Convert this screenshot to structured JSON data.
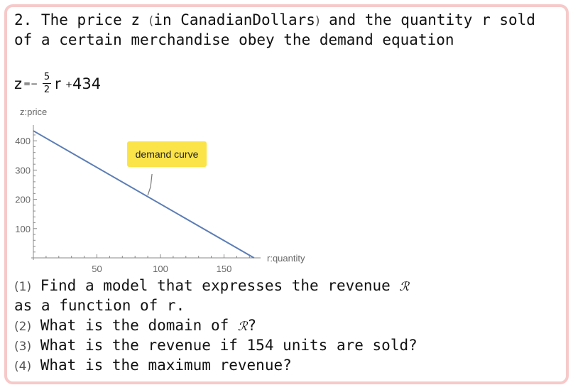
{
  "problem": {
    "line1_a": "2. The price z ",
    "paren_open": "(",
    "line1_b": "in CanadianDollars",
    "paren_close": ")",
    "line1_c": " and the quantity r sold",
    "line2": "of a certain merchandise obey the demand equation"
  },
  "equation": {
    "lhs": "z",
    "eq": "=−",
    "frac_num": "5",
    "frac_den": "2",
    "var": "r",
    "plus": "+",
    "const": "434"
  },
  "chart_data": {
    "type": "line",
    "ylabel": "z:price",
    "xlabel": "r:quantity",
    "xlim": [
      0,
      175
    ],
    "ylim": [
      0,
      434
    ],
    "x_ticks": [
      50,
      100,
      150
    ],
    "y_ticks": [
      100,
      200,
      300,
      400
    ],
    "series": [
      {
        "name": "demand curve",
        "x": [
          0,
          173.6
        ],
        "y": [
          434,
          0
        ]
      }
    ],
    "annotation": {
      "text": "demand curve",
      "at_x": 90,
      "at_y": 209
    },
    "colors": {
      "line": "#5b7db5",
      "label_bg": "#fbe34a",
      "axis": "#888888"
    }
  },
  "questions": [
    {
      "num": "1",
      "text": " Find a model that expresses the revenue ",
      "symbol": "ℛ",
      "tail": ""
    },
    {
      "num": "",
      "text": "as a function of r.",
      "symbol": "",
      "tail": ""
    },
    {
      "num": "2",
      "text": " What is the domain of ",
      "symbol": "ℛ",
      "tail": "?"
    },
    {
      "num": "3",
      "text": " What is the revenue if 154 units are sold?",
      "symbol": "",
      "tail": ""
    },
    {
      "num": "4",
      "text": " What is the maximum revenue?",
      "symbol": "",
      "tail": ""
    }
  ]
}
